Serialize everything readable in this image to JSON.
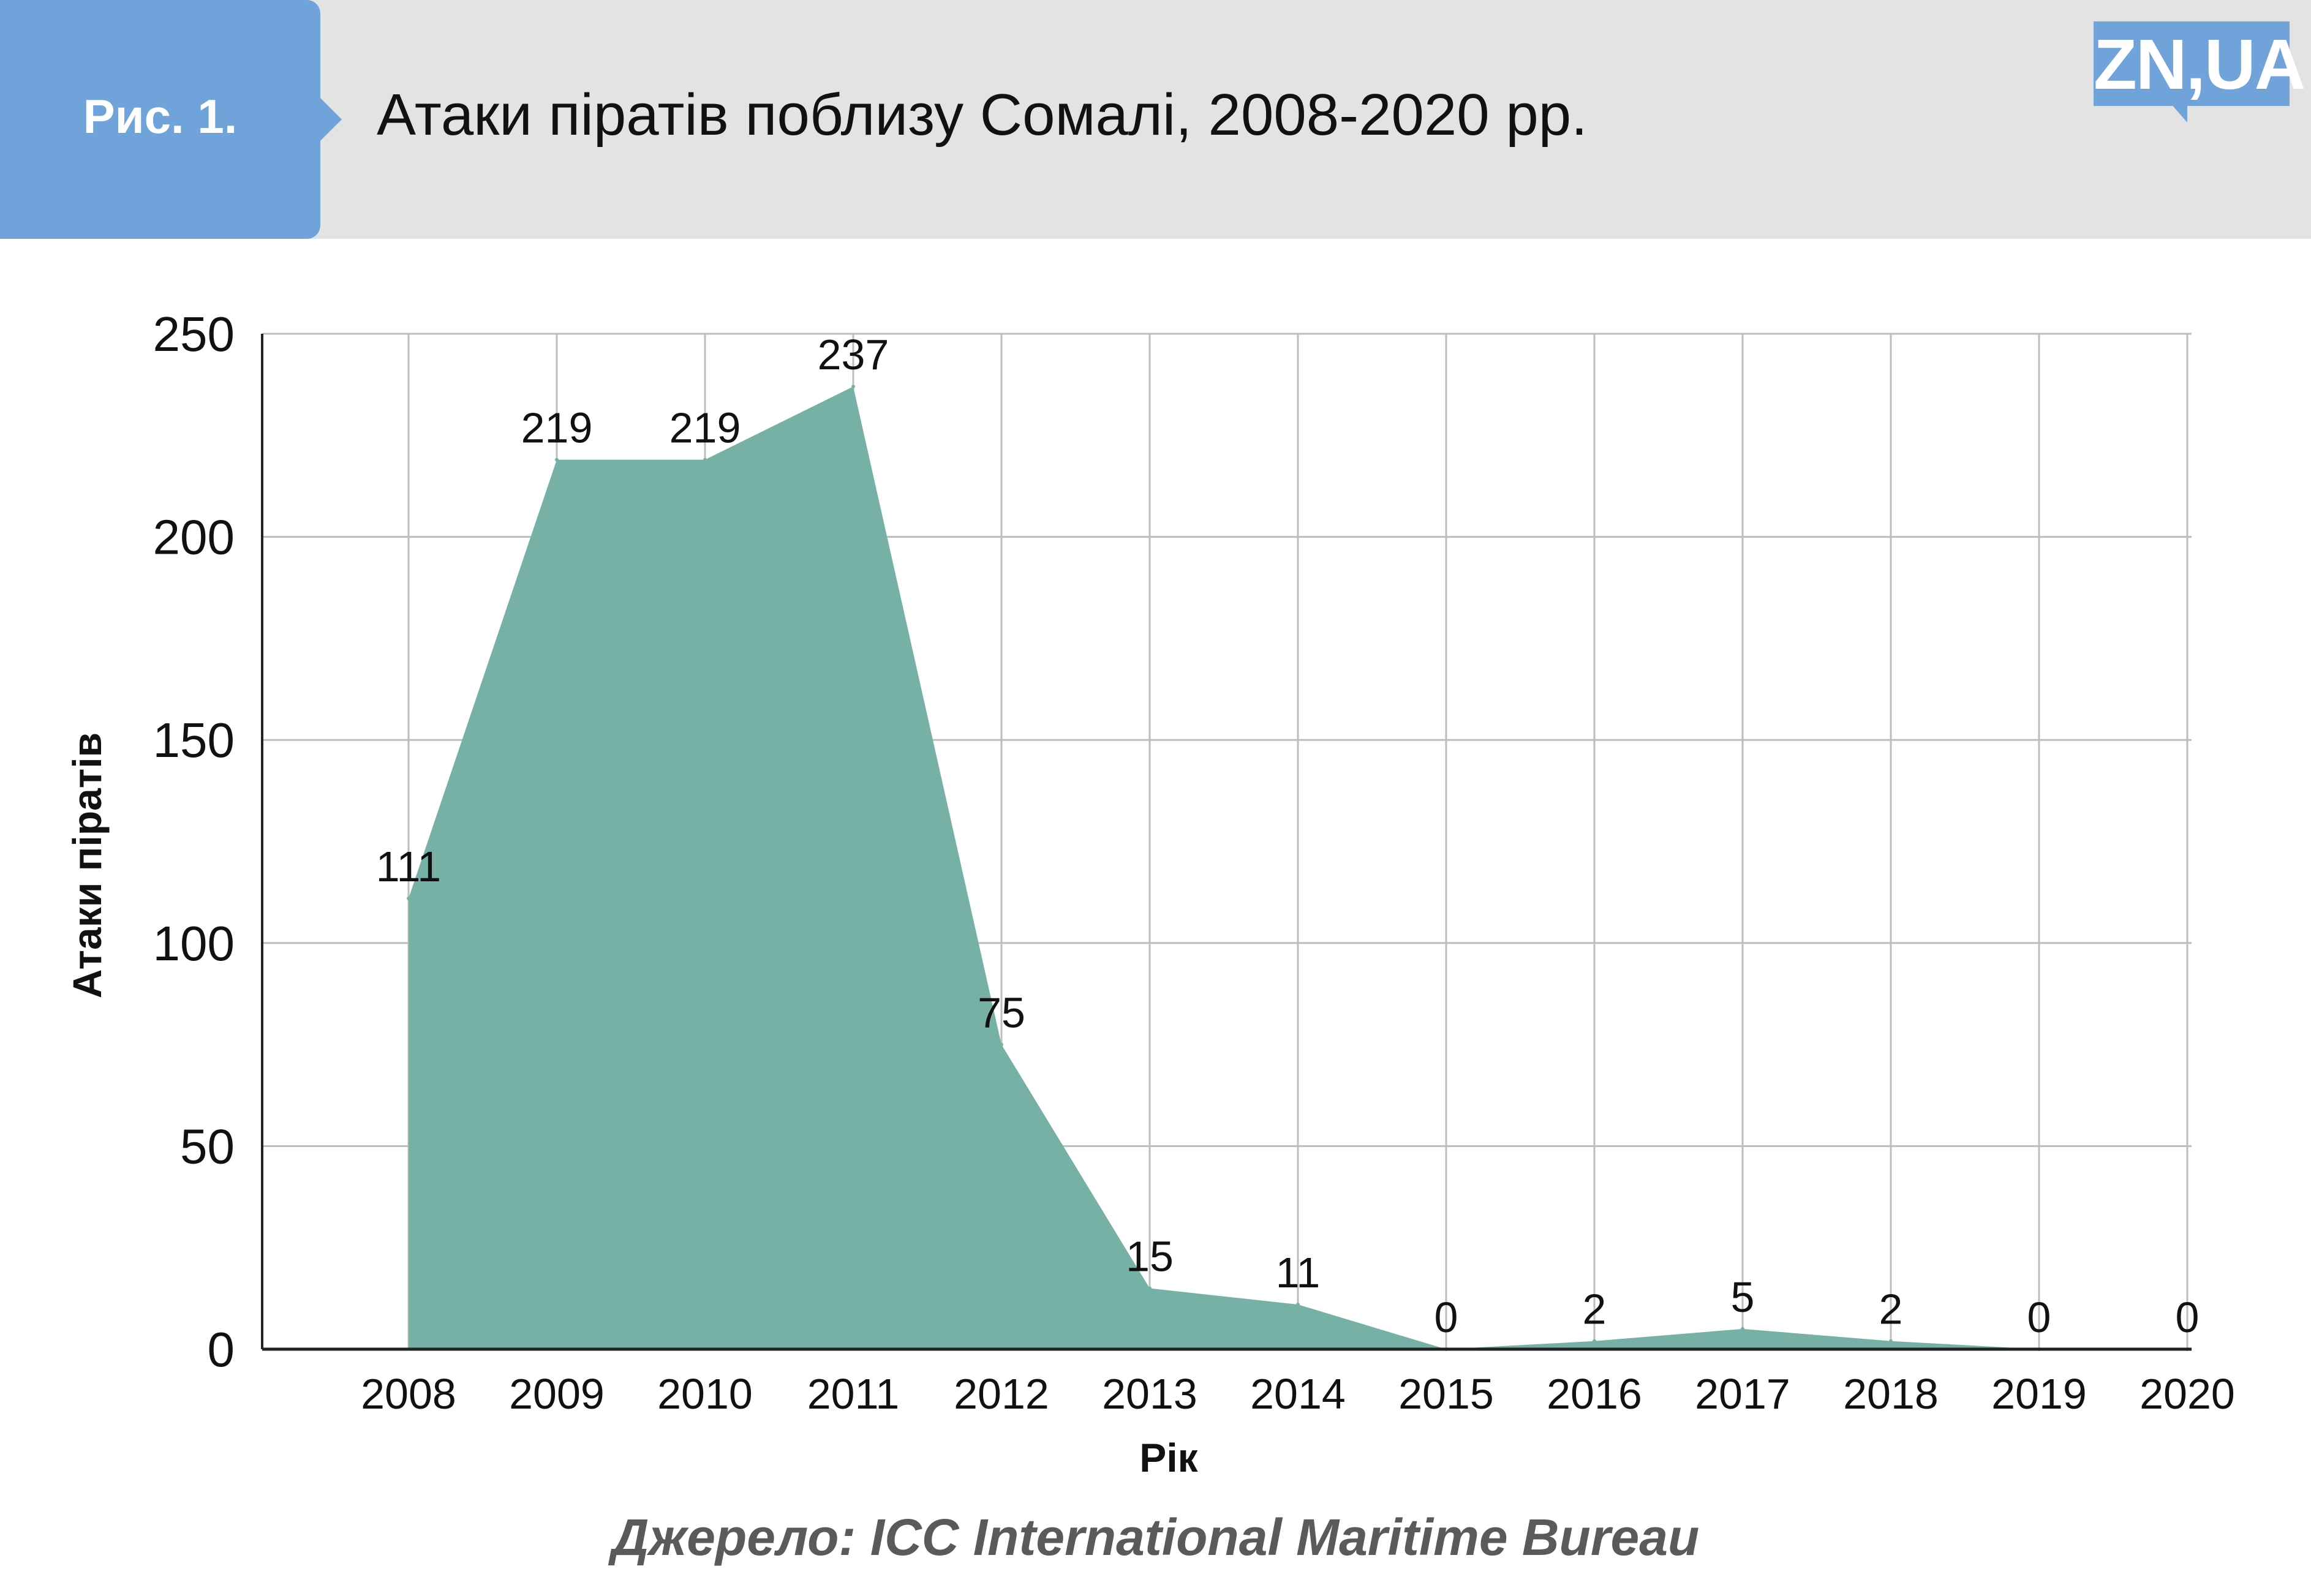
{
  "header": {
    "figure_label": "Рис. 1.",
    "title": "Атаки піратів поблизу Сомалі, 2008-2020 рр.",
    "logo_text": "ZN,UA"
  },
  "colors": {
    "header_bg": "#e3e3e3",
    "badge": "#6fa3d9",
    "area_fill": "#77b1a5",
    "grid": "#bdbdbd",
    "axis": "#222222"
  },
  "chart_data": {
    "type": "area",
    "categories": [
      "2008",
      "2009",
      "2010",
      "2011",
      "2012",
      "2013",
      "2014",
      "2015",
      "2016",
      "2017",
      "2018",
      "2019",
      "2020"
    ],
    "series": [
      {
        "values": [
          111,
          219,
          219,
          237,
          75,
          15,
          11,
          0,
          2,
          5,
          2,
          0,
          0
        ]
      }
    ],
    "xlabel": "Рік",
    "ylabel": "Атаки піратів",
    "ylim": [
      0,
      250
    ],
    "yticks": [
      0,
      50,
      100,
      150,
      200,
      250
    ],
    "grid": true,
    "data_labels": true
  },
  "source": "Джерело: ICC International Maritime Bureau"
}
